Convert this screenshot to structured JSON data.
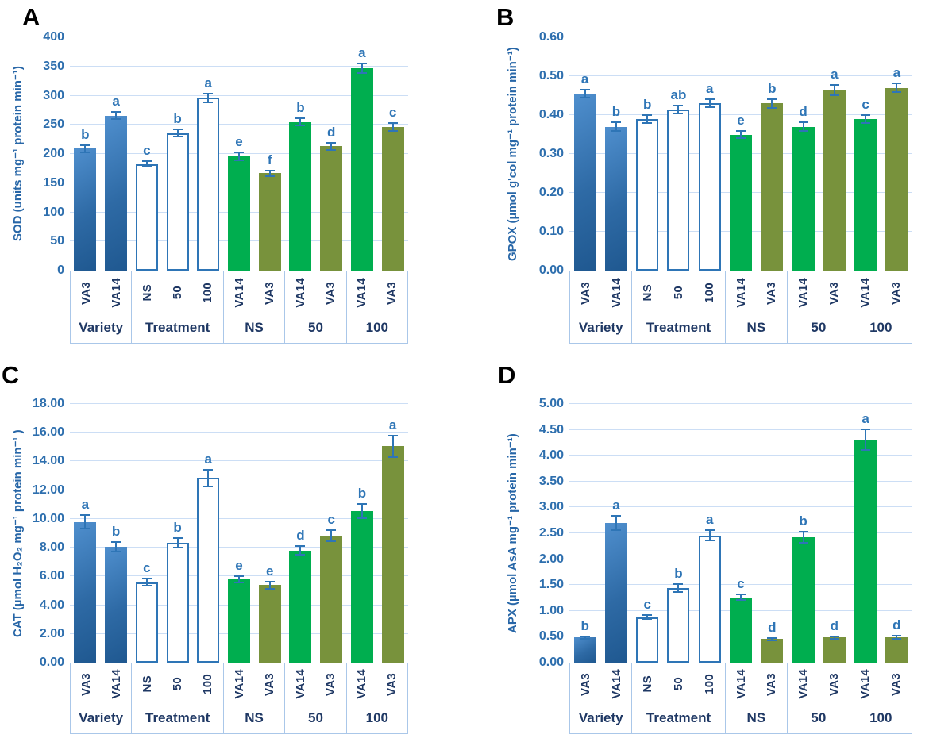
{
  "figure_title": "Antioxidant enzyme activity bar charts",
  "colors": {
    "bar_blue_light": "#4f8fce",
    "bar_blue_dark": "#1f5890",
    "bar_white_outline": "#2e75b6",
    "bar_green": "#00ae4f",
    "bar_olive": "#78923c",
    "error_bar": "#2e75b6",
    "sig_letter": "#2e75b6",
    "gridline": "#ccdef5",
    "table_border": "#aac7e9",
    "y_tick_text": "#2e6fae",
    "x_label_text": "#1f3864",
    "y_title_text": "#2766a7",
    "panel_letter_text": "#000000"
  },
  "chart_data": [
    {
      "panel": "A",
      "type": "bar",
      "title": "",
      "xlabel": "",
      "ylabel": "SOD (units mg⁻¹ protein min⁻¹)",
      "ylim": [
        0,
        400
      ],
      "ytick_step": 50,
      "tick_decimals": 0,
      "grid": true,
      "legend": "none",
      "groups": [
        {
          "label": "Variety",
          "bars": [
            {
              "x": "VA3",
              "value": 209,
              "err": 7,
              "letter": "b",
              "style": "blue"
            },
            {
              "x": "VA14",
              "value": 266,
              "err": 8,
              "letter": "a",
              "style": "blue"
            }
          ]
        },
        {
          "label": "Treatment",
          "bars": [
            {
              "x": "NS",
              "value": 183,
              "err": 6,
              "letter": "c",
              "style": "white"
            },
            {
              "x": "50",
              "value": 236,
              "err": 8,
              "letter": "b",
              "style": "white"
            },
            {
              "x": "100",
              "value": 296,
              "err": 9,
              "letter": "a",
              "style": "white"
            }
          ]
        },
        {
          "label": "NS",
          "bars": [
            {
              "x": "VA14",
              "value": 196,
              "err": 8,
              "letter": "e",
              "style": "green"
            },
            {
              "x": "VA3",
              "value": 167,
              "err": 6,
              "letter": "f",
              "style": "olive"
            }
          ]
        },
        {
          "label": "50",
          "bars": [
            {
              "x": "VA14",
              "value": 255,
              "err": 8,
              "letter": "b",
              "style": "green"
            },
            {
              "x": "VA3",
              "value": 213,
              "err": 7,
              "letter": "d",
              "style": "olive"
            }
          ]
        },
        {
          "label": "100",
          "bars": [
            {
              "x": "VA14",
              "value": 347,
              "err": 10,
              "letter": "a",
              "style": "green"
            },
            {
              "x": "VA3",
              "value": 246,
              "err": 8,
              "letter": "c",
              "style": "olive"
            }
          ]
        }
      ]
    },
    {
      "panel": "B",
      "type": "bar",
      "title": "",
      "xlabel": "",
      "ylabel": "GPOX (µmol g'col mg⁻¹ protein min⁻¹)",
      "ylim": [
        0,
        0.6
      ],
      "ytick_step": 0.1,
      "tick_decimals": 2,
      "grid": true,
      "legend": "none",
      "groups": [
        {
          "label": "Variety",
          "bars": [
            {
              "x": "VA3",
              "value": 0.455,
              "err": 0.013,
              "letter": "a",
              "style": "blue"
            },
            {
              "x": "VA14",
              "value": 0.37,
              "err": 0.013,
              "letter": "b",
              "style": "blue"
            }
          ]
        },
        {
          "label": "Treatment",
          "bars": [
            {
              "x": "NS",
              "value": 0.39,
              "err": 0.013,
              "letter": "b",
              "style": "white"
            },
            {
              "x": "50",
              "value": 0.415,
              "err": 0.012,
              "letter": "ab",
              "style": "white"
            },
            {
              "x": "100",
              "value": 0.43,
              "err": 0.012,
              "letter": "a",
              "style": "white"
            }
          ]
        },
        {
          "label": "NS",
          "bars": [
            {
              "x": "VA14",
              "value": 0.35,
              "err": 0.012,
              "letter": "e",
              "style": "green"
            },
            {
              "x": "VA3",
              "value": 0.43,
              "err": 0.013,
              "letter": "b",
              "style": "olive"
            }
          ]
        },
        {
          "label": "50",
          "bars": [
            {
              "x": "VA14",
              "value": 0.37,
              "err": 0.013,
              "letter": "d",
              "style": "green"
            },
            {
              "x": "VA3",
              "value": 0.465,
              "err": 0.015,
              "letter": "a",
              "style": "olive"
            }
          ]
        },
        {
          "label": "100",
          "bars": [
            {
              "x": "VA14",
              "value": 0.39,
              "err": 0.012,
              "letter": "c",
              "style": "green"
            },
            {
              "x": "VA3",
              "value": 0.47,
              "err": 0.013,
              "letter": "a",
              "style": "olive"
            }
          ]
        }
      ]
    },
    {
      "panel": "C",
      "type": "bar",
      "title": "",
      "xlabel": "",
      "ylabel": "CAT (µmol H₂O₂ mg⁻¹ protein min⁻¹ )",
      "ylim": [
        0,
        18
      ],
      "ytick_step": 2,
      "tick_decimals": 2,
      "grid": true,
      "legend": "none",
      "groups": [
        {
          "label": "Variety",
          "bars": [
            {
              "x": "VA3",
              "value": 9.8,
              "err": 0.5,
              "letter": "a",
              "style": "blue"
            },
            {
              "x": "VA14",
              "value": 8.05,
              "err": 0.4,
              "letter": "b",
              "style": "blue"
            }
          ]
        },
        {
          "label": "Treatment",
          "bars": [
            {
              "x": "NS",
              "value": 5.6,
              "err": 0.3,
              "letter": "c",
              "style": "white"
            },
            {
              "x": "50",
              "value": 8.35,
              "err": 0.4,
              "letter": "b",
              "style": "white"
            },
            {
              "x": "100",
              "value": 12.85,
              "err": 0.65,
              "letter": "a",
              "style": "white"
            }
          ]
        },
        {
          "label": "NS",
          "bars": [
            {
              "x": "VA14",
              "value": 5.8,
              "err": 0.3,
              "letter": "e",
              "style": "green"
            },
            {
              "x": "VA3",
              "value": 5.4,
              "err": 0.3,
              "letter": "e",
              "style": "olive"
            }
          ]
        },
        {
          "label": "50",
          "bars": [
            {
              "x": "VA14",
              "value": 7.8,
              "err": 0.35,
              "letter": "d",
              "style": "green"
            },
            {
              "x": "VA3",
              "value": 8.85,
              "err": 0.45,
              "letter": "c",
              "style": "olive"
            }
          ]
        },
        {
          "label": "100",
          "bars": [
            {
              "x": "VA14",
              "value": 10.55,
              "err": 0.55,
              "letter": "b",
              "style": "green"
            },
            {
              "x": "VA3",
              "value": 15.05,
              "err": 0.8,
              "letter": "a",
              "style": "olive"
            }
          ]
        }
      ]
    },
    {
      "panel": "D",
      "type": "bar",
      "title": "",
      "xlabel": "",
      "ylabel": "APX (µmol AsA mg⁻¹ protein min⁻¹)",
      "ylim": [
        0,
        5
      ],
      "ytick_step": 0.5,
      "tick_decimals": 2,
      "grid": true,
      "legend": "none",
      "groups": [
        {
          "label": "Variety",
          "bars": [
            {
              "x": "VA3",
              "value": 0.49,
              "err": 0.02,
              "letter": "b",
              "style": "blue"
            },
            {
              "x": "VA14",
              "value": 2.7,
              "err": 0.15,
              "letter": "a",
              "style": "blue"
            }
          ]
        },
        {
          "label": "Treatment",
          "bars": [
            {
              "x": "NS",
              "value": 0.88,
              "err": 0.05,
              "letter": "c",
              "style": "white"
            },
            {
              "x": "50",
              "value": 1.44,
              "err": 0.09,
              "letter": "b",
              "style": "white"
            },
            {
              "x": "100",
              "value": 2.46,
              "err": 0.12,
              "letter": "a",
              "style": "white"
            }
          ]
        },
        {
          "label": "NS",
          "bars": [
            {
              "x": "VA14",
              "value": 1.26,
              "err": 0.07,
              "letter": "c",
              "style": "green"
            },
            {
              "x": "VA3",
              "value": 0.46,
              "err": 0.03,
              "letter": "d",
              "style": "olive"
            }
          ]
        },
        {
          "label": "50",
          "bars": [
            {
              "x": "VA14",
              "value": 2.42,
              "err": 0.12,
              "letter": "b",
              "style": "green"
            },
            {
              "x": "VA3",
              "value": 0.49,
              "err": 0.03,
              "letter": "d",
              "style": "olive"
            }
          ]
        },
        {
          "label": "100",
          "bars": [
            {
              "x": "VA14",
              "value": 4.31,
              "err": 0.22,
              "letter": "a",
              "style": "green"
            },
            {
              "x": "VA3",
              "value": 0.49,
              "err": 0.04,
              "letter": "d",
              "style": "olive"
            }
          ]
        }
      ]
    }
  ]
}
